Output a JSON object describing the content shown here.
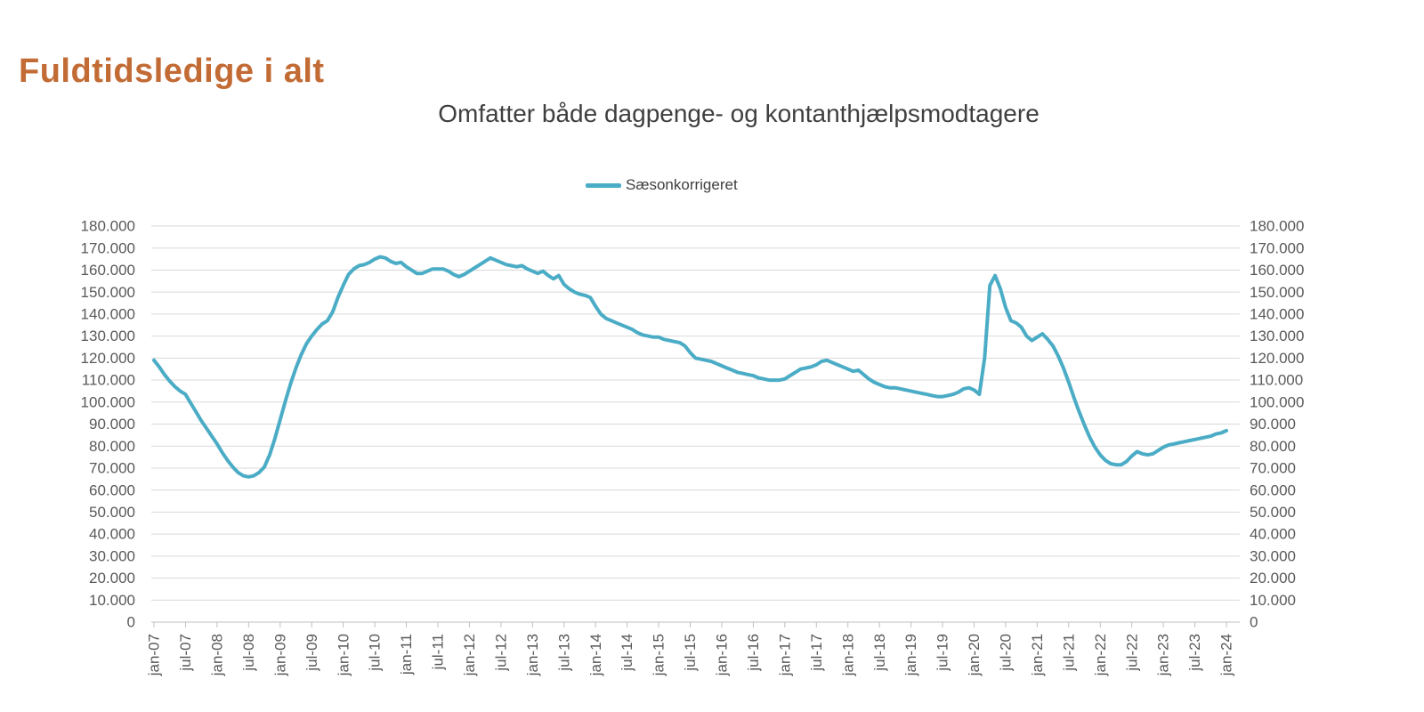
{
  "page": {
    "title": "Fuldtidsledige i alt"
  },
  "colors": {
    "title": "#C26B35",
    "subtitle": "#3F3F3F",
    "legend_text": "#404040",
    "axis_text": "#595959",
    "gridline": "#D9D9D9",
    "axis_line": "#BFBFBF",
    "series": "#4BACC6"
  },
  "chart_data": {
    "type": "line",
    "title": "Omfatter både dagpenge- og kontanthjælpsmodtagere",
    "legend_position": "top-center",
    "grid": true,
    "ylim": [
      0,
      180000
    ],
    "y_tick_step": 10000,
    "y_axis_left": true,
    "y_axis_right": true,
    "y_tick_labels": [
      "0",
      "10.000",
      "20.000",
      "30.000",
      "40.000",
      "50.000",
      "60.000",
      "70.000",
      "80.000",
      "90.000",
      "100.000",
      "110.000",
      "120.000",
      "130.000",
      "140.000",
      "150.000",
      "160.000",
      "170.000",
      "180.000"
    ],
    "x_unit": "month",
    "x_start": "jan-07",
    "x_end": "jan-24",
    "x_ticks_every_n_points": 6,
    "x_tick_labels": [
      "jan-07",
      "jul-07",
      "jan-08",
      "jul-08",
      "jan-09",
      "jul-09",
      "jan-10",
      "jul-10",
      "jan-11",
      "jul-11",
      "jan-12",
      "jul-12",
      "jan-13",
      "jul-13",
      "jan-14",
      "jul-14",
      "jan-15",
      "jul-15",
      "jan-16",
      "jul-16",
      "jan-17",
      "jul-17",
      "jan-18",
      "jul-18",
      "jan-19",
      "jul-19",
      "jan-20",
      "jul-20",
      "jan-21",
      "jul-21",
      "jan-22",
      "jul-22",
      "jan-23",
      "jul-23",
      "jan-24"
    ],
    "series": [
      {
        "name": "Sæsonkorrigeret",
        "color": "#4BACC6",
        "values": [
          119000,
          116000,
          112500,
          109500,
          107000,
          105000,
          103500,
          99500,
          95500,
          91500,
          88000,
          84500,
          81000,
          77000,
          73500,
          70500,
          68000,
          66500,
          66000,
          66500,
          68000,
          70500,
          76000,
          83500,
          92000,
          100500,
          108500,
          115500,
          121500,
          126500,
          130000,
          133000,
          135500,
          137000,
          141000,
          147500,
          153000,
          158000,
          160500,
          162000,
          162500,
          163500,
          165000,
          166000,
          165500,
          164000,
          163000,
          163500,
          161500,
          160000,
          158500,
          158500,
          159500,
          160500,
          160500,
          160500,
          159500,
          158000,
          157000,
          158000,
          159500,
          161000,
          162500,
          164000,
          165500,
          164500,
          163500,
          162500,
          162000,
          161500,
          162000,
          160500,
          159500,
          158500,
          159500,
          157500,
          156000,
          157500,
          153500,
          151500,
          150000,
          149000,
          148500,
          147500,
          143500,
          140000,
          138000,
          137000,
          136000,
          135000,
          134000,
          133000,
          131500,
          130500,
          130000,
          129500,
          129500,
          128500,
          128000,
          127500,
          127000,
          125500,
          122500,
          120000,
          119500,
          119000,
          118500,
          117500,
          116500,
          115500,
          114500,
          113500,
          113000,
          112500,
          112000,
          111000,
          110500,
          110000,
          110000,
          110000,
          110500,
          112000,
          113500,
          115000,
          115500,
          116000,
          117000,
          118500,
          119000,
          118000,
          117000,
          116000,
          115000,
          114000,
          114500,
          112500,
          110500,
          109000,
          108000,
          107000,
          106500,
          106500,
          106000,
          105500,
          105000,
          104500,
          104000,
          103500,
          103000,
          102500,
          102500,
          103000,
          103500,
          104500,
          106000,
          106500,
          105500,
          103500,
          120000,
          153000,
          157500,
          151500,
          143000,
          137000,
          136000,
          134000,
          130000,
          128000,
          129500,
          131000,
          128500,
          125500,
          121000,
          115500,
          109000,
          102000,
          95500,
          89500,
          84000,
          79500,
          76000,
          73500,
          72000,
          71500,
          71500,
          73000,
          75500,
          77500,
          76500,
          76000,
          76500,
          78000,
          79500,
          80500,
          81000,
          81500,
          82000,
          82500,
          83000,
          83500,
          84000,
          84500,
          85500,
          86000,
          87000
        ]
      }
    ]
  }
}
